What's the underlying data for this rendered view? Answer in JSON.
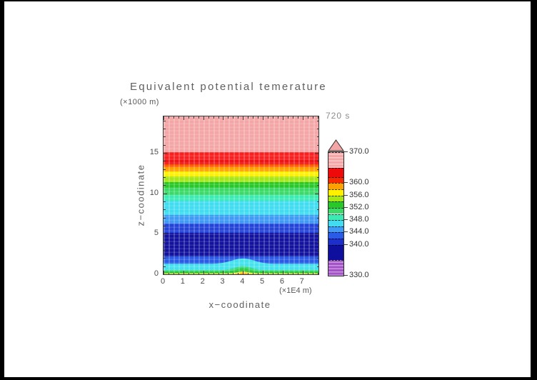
{
  "frame": {
    "border_color": "#000000",
    "canvas_color": "#ffffff"
  },
  "chart_data": {
    "type": "heatmap",
    "title": "Equivalent potential temerature",
    "time_label": "720 s",
    "legend_position": "right-colorbar",
    "grid_texture": true,
    "x": {
      "label": "x−coodinate",
      "units_label": "(×1E4 m)",
      "range": [
        0,
        7.8
      ],
      "major_ticks": [
        0,
        1,
        2,
        3,
        4,
        5,
        6,
        7
      ],
      "tick_labels": [
        "0",
        "1",
        "2",
        "3",
        "4",
        "5",
        "6",
        "7"
      ],
      "minor_tick_step": 0.25
    },
    "z": {
      "label": "z−coodinate",
      "units_label": "(×1000 m)",
      "range": [
        0,
        19.5
      ],
      "major_ticks": [
        0,
        5,
        10,
        15
      ],
      "tick_labels": [
        "0",
        "5",
        "10",
        "15"
      ],
      "minor_tick_step": 1
    },
    "bands": [
      {
        "z_from": 0.0,
        "z_to": 0.12,
        "theta_e": "356-358",
        "color": "#F2E43C"
      },
      {
        "z_from": 0.12,
        "z_to": 0.34,
        "theta_e": "352-354",
        "color": "#2CC83C"
      },
      {
        "z_from": 0.34,
        "z_to": 0.52,
        "theta_e": "350-352",
        "color": "#3EDC82"
      },
      {
        "z_from": 0.52,
        "z_to": 1.3,
        "theta_e": "346-348",
        "color": "#45E2EE"
      },
      {
        "z_from": 1.3,
        "z_to": 2.05,
        "theta_e": "342-344",
        "color": "#2A5BE6"
      },
      {
        "z_from": 2.05,
        "z_to": 5.1,
        "theta_e": "336-340",
        "color": "#12129E"
      },
      {
        "z_from": 5.1,
        "z_to": 6.3,
        "theta_e": "340-342",
        "color": "#2443D8"
      },
      {
        "z_from": 6.3,
        "z_to": 7.3,
        "theta_e": "344-346",
        "color": "#3E9AF5"
      },
      {
        "z_from": 7.3,
        "z_to": 9.1,
        "theta_e": "346-348",
        "color": "#40DCF0"
      },
      {
        "z_from": 9.1,
        "z_to": 9.8,
        "theta_e": "348-350",
        "color": "#3CEBB4"
      },
      {
        "z_from": 9.8,
        "z_to": 10.7,
        "theta_e": "350-352",
        "color": "#3CD968"
      },
      {
        "z_from": 10.7,
        "z_to": 11.4,
        "theta_e": "352-354",
        "color": "#28C828"
      },
      {
        "z_from": 11.4,
        "z_to": 12.1,
        "theta_e": "354-356",
        "color": "#A5E614"
      },
      {
        "z_from": 12.1,
        "z_to": 12.7,
        "theta_e": "356-358",
        "color": "#FFF000"
      },
      {
        "z_from": 12.7,
        "z_to": 13.2,
        "theta_e": "358-360",
        "color": "#FFA000"
      },
      {
        "z_from": 13.2,
        "z_to": 13.6,
        "theta_e": "360-362",
        "color": "#FF5A00"
      },
      {
        "z_from": 13.6,
        "z_to": 14.2,
        "theta_e": "362-364",
        "color": "#EE1414"
      },
      {
        "z_from": 14.2,
        "z_to": 15.05,
        "theta_e": "364-366",
        "color": "#F92020"
      },
      {
        "z_from": 15.05,
        "z_to": 19.5,
        "theta_e": "366-370",
        "color": "#F4A6A6"
      }
    ],
    "surface_anomaly": {
      "center_x": 4.0,
      "base_color": "#2A5BE6",
      "z_span": 2.2,
      "layers": [
        {
          "color": "#45E2EE",
          "base_z": 1.3,
          "peak_z": 1.95,
          "half_width_x": 0.68
        },
        {
          "color": "#3EDC82",
          "base_z": 0.52,
          "peak_z": 1.0,
          "half_width_x": 0.5
        },
        {
          "color": "#2CC83C",
          "base_z": 0.34,
          "peak_z": 0.72,
          "half_width_x": 0.42
        },
        {
          "color": "#F2E43C",
          "base_z": 0.12,
          "peak_z": 0.34,
          "half_width_x": 0.34
        },
        {
          "color": "#FFA000",
          "base_z": 0.0,
          "peak_z": 0.17,
          "half_width_x": 0.22
        }
      ]
    },
    "colorbar": {
      "range": [
        330,
        370
      ],
      "labeled_levels": [
        {
          "value": 370,
          "label": "370.0"
        },
        {
          "value": 360,
          "label": "360.0"
        },
        {
          "value": 356,
          "label": "356.0"
        },
        {
          "value": 352,
          "label": "352.0"
        },
        {
          "value": 348,
          "label": "348.0"
        },
        {
          "value": 344,
          "label": "344.0"
        },
        {
          "value": 340,
          "label": "340.0"
        },
        {
          "value": 330,
          "label": "330.0"
        }
      ],
      "segments": [
        {
          "from": 330,
          "to": 335,
          "color": "#A352C8",
          "hatch": true
        },
        {
          "from": 335,
          "to": 340,
          "color": "#0F0F9E"
        },
        {
          "from": 340,
          "to": 342,
          "color": "#1C2ECC"
        },
        {
          "from": 342,
          "to": 344,
          "color": "#2A5BE6"
        },
        {
          "from": 344,
          "to": 346,
          "color": "#3E9AF5"
        },
        {
          "from": 346,
          "to": 348,
          "color": "#40DCF0"
        },
        {
          "from": 348,
          "to": 350,
          "color": "#3CEBB4"
        },
        {
          "from": 350,
          "to": 352,
          "color": "#3CD968"
        },
        {
          "from": 352,
          "to": 354,
          "color": "#28C828"
        },
        {
          "from": 354,
          "to": 356,
          "color": "#A5E614"
        },
        {
          "from": 356,
          "to": 358,
          "color": "#FFF000"
        },
        {
          "from": 358,
          "to": 360,
          "color": "#FFA000"
        },
        {
          "from": 360,
          "to": 362,
          "color": "#F52800"
        },
        {
          "from": 362,
          "to": 365,
          "color": "#EE0A0A"
        },
        {
          "from": 365,
          "to": 370,
          "color": "#F4A6A6",
          "hatch": true
        }
      ],
      "over_range_arrow": {
        "color": "#F4A6A6"
      }
    }
  }
}
